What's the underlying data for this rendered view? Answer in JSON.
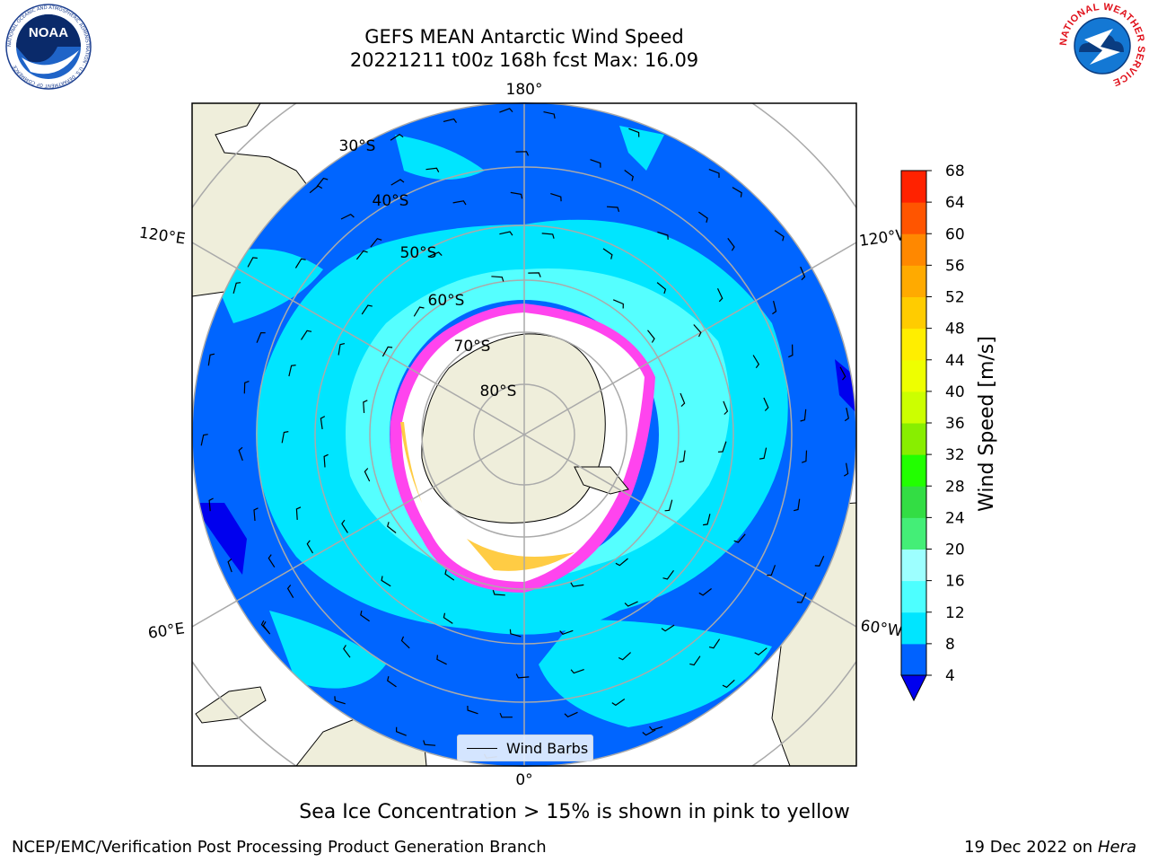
{
  "header": {
    "title_line1": "GEFS MEAN Antarctic Wind Speed",
    "title_line2": "20221211 t00z 168h fcst   Max: 16.09"
  },
  "logos": {
    "left": "NOAA",
    "left_ring": "NATIONAL OCEANIC AND ATMOSPHERIC ADMINISTRATION · U.S. DEPARTMENT OF COMMERCE",
    "right": "NATIONAL WEATHER SERVICE"
  },
  "map": {
    "projection": "south-polar-stereographic",
    "longitude_labels": [
      "180°",
      "120°E",
      "120°W",
      "60°E",
      "60°W",
      "0°"
    ],
    "latitude_labels": [
      "30°S",
      "40°S",
      "50°S",
      "60°S",
      "70°S",
      "80°S"
    ],
    "legend_label": "Wind Barbs",
    "colors": {
      "land": "#efeedb",
      "low_wind": "#0065ff",
      "mid_wind": "#00e5ff",
      "high_wind": "#55ffff",
      "sea_ice": "#ff44ee",
      "deep_blue": "#0000ee"
    }
  },
  "colorbar": {
    "label": "Wind Speed [m/s]",
    "ticks": [
      "4",
      "8",
      "12",
      "16",
      "20",
      "24",
      "28",
      "32",
      "36",
      "40",
      "44",
      "48",
      "52",
      "56",
      "60",
      "64",
      "68"
    ],
    "colors": [
      "#0062ff",
      "#00e5ff",
      "#4dffff",
      "#9dffff",
      "#44ee77",
      "#33dd44",
      "#22ff00",
      "#88ee00",
      "#ccff00",
      "#eeff00",
      "#ffee00",
      "#ffcc00",
      "#ffaa00",
      "#ff8800",
      "#ff5500",
      "#ff2200"
    ],
    "extend_color": "#0000ee"
  },
  "footer": {
    "note": "Sea Ice Concentration > 15% is shown in pink to yellow",
    "credit": "NCEP/EMC/Verification Post Processing Product Generation Branch",
    "date": "19 Dec 2022 on",
    "machine": "Hera"
  }
}
